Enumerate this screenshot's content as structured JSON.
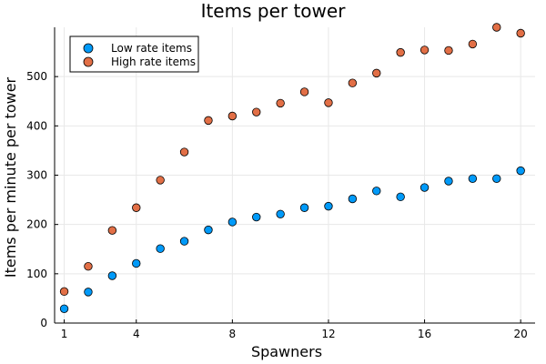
{
  "chart_data": {
    "type": "scatter",
    "title": "Items per tower",
    "xlabel": "Spawners",
    "ylabel": "Items per minute per tower",
    "xlim": [
      0.6,
      20.6
    ],
    "ylim": [
      0,
      600
    ],
    "xticks": [
      1,
      4,
      8,
      12,
      16,
      20
    ],
    "yticks": [
      0,
      100,
      200,
      300,
      400,
      500
    ],
    "grid": true,
    "legend": "top-left",
    "x": [
      1,
      2,
      3,
      4,
      5,
      6,
      7,
      8,
      9,
      10,
      11,
      12,
      13,
      14,
      15,
      16,
      17,
      18,
      19,
      20
    ],
    "series": [
      {
        "name": "Low rate items",
        "color": "#009af9",
        "values": [
          29,
          63,
          96,
          121,
          151,
          166,
          189,
          205,
          215,
          221,
          234,
          237,
          252,
          268,
          256,
          275,
          288,
          293,
          293,
          309
        ]
      },
      {
        "name": "High rate items",
        "color": "#e26f46",
        "values": [
          64,
          115,
          188,
          234,
          290,
          347,
          411,
          420,
          428,
          446,
          469,
          447,
          487,
          507,
          549,
          554,
          553,
          566,
          600,
          588
        ]
      }
    ]
  }
}
